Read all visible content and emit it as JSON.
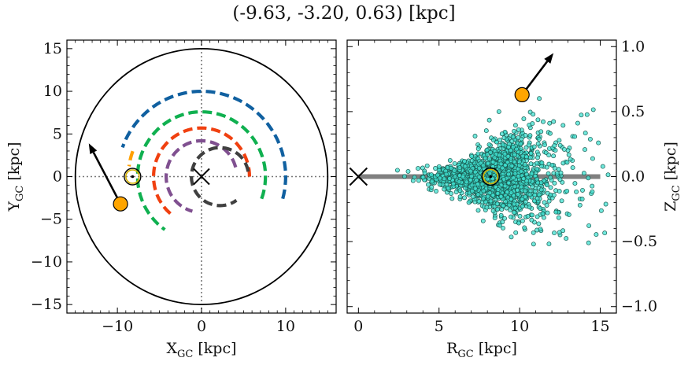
{
  "figure": {
    "title": "(-9.63, -3.20, 0.63) [kpc]"
  },
  "chart_data": [
    {
      "type": "scatter",
      "panel": "left",
      "xlabel": "X_GC [kpc]",
      "ylabel": "Y_GC [kpc]",
      "xlim": [
        -16,
        16
      ],
      "ylim": [
        -16,
        16
      ],
      "xticks": [
        -10,
        0,
        10
      ],
      "yticks": [
        -15,
        -10,
        -5,
        0,
        5,
        10,
        15
      ],
      "xtick_labels": [
        "−10",
        "0",
        "10"
      ],
      "ytick_labels": [
        "−15",
        "−10",
        "−5",
        "0",
        "5",
        "10",
        "15"
      ],
      "outer_circle_radius": 15,
      "galactic_center": [
        0,
        0
      ],
      "sun": [
        -8.2,
        0
      ],
      "star": {
        "x": -9.63,
        "y": -3.2,
        "vector_to": [
          -13.4,
          3.9
        ],
        "color": "#ffa500"
      },
      "spiral_arms": [
        {
          "color": "#1060a0",
          "r": 10.0,
          "theta_start": -15,
          "theta_end": 160
        },
        {
          "color": "#10b050",
          "r": 7.6,
          "theta_start": -20,
          "theta_end": 235
        },
        {
          "color": "#f04010",
          "r": 5.7,
          "theta_start": 0,
          "theta_end": 235
        },
        {
          "color": "#805090",
          "r": 4.2,
          "theta_start": 15,
          "theta_end": 255
        },
        {
          "color": "#404040",
          "r": 3.4,
          "theta_start": 10,
          "theta_end": 305,
          "center": [
            2.2,
            0.0
          ]
        },
        {
          "color": "#ffa000",
          "r": 8.7,
          "theta_start": 160,
          "theta_end": 172
        }
      ],
      "grid": false
    },
    {
      "type": "scatter",
      "panel": "right",
      "xlabel": "R_GC [kpc]",
      "ylabel": "Z_GC [kpc]",
      "xlim": [
        -0.7,
        16.0
      ],
      "ylim": [
        -1.05,
        1.05
      ],
      "xticks": [
        0,
        5,
        10,
        15
      ],
      "yticks": [
        -1.0,
        -0.5,
        0.0,
        0.5,
        1.0
      ],
      "xtick_labels": [
        "0",
        "5",
        "10",
        "15"
      ],
      "ytick_labels": [
        "−1.0",
        "−0.5",
        "0.0",
        "0.5",
        "1.0"
      ],
      "ylabel_side": "right",
      "disk_line": {
        "x": [
          0,
          15
        ],
        "y": 0
      },
      "galactic_center": [
        0,
        0
      ],
      "sun": [
        8.2,
        0
      ],
      "star": {
        "x": 10.15,
        "y": 0.63,
        "vector_to": [
          12.1,
          0.95
        ],
        "color": "#ffa500"
      },
      "points_color": "#40e0d0",
      "points_edge": "#1a5a50",
      "point_count": 1800,
      "point_distribution": "disk population centered near R 7–9 kpc, Z 0, spread widening with R",
      "grid": false
    }
  ]
}
